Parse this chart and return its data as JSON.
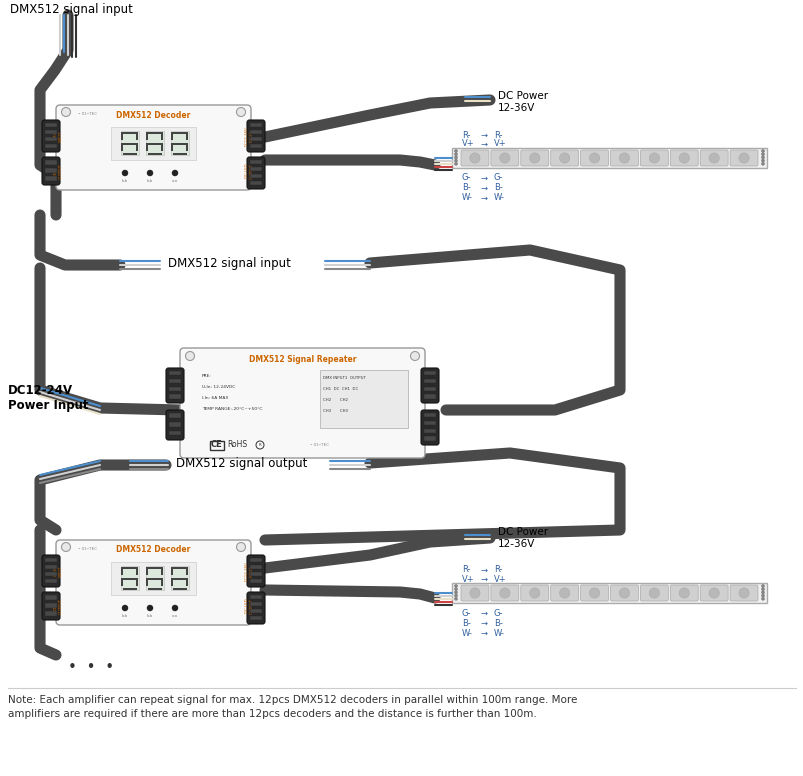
{
  "bg_color": "#ffffff",
  "dark_gray": "#4a4a4a",
  "blue_wire": "#4d8fcc",
  "white_wire": "#d0d0d0",
  "cream_wire": "#e8e0c8",
  "black_wire": "#333333",
  "connector_dark": "#2a2a2a",
  "connector_screw": "#505050",
  "box_fill": "#f8f8f8",
  "box_edge": "#999999",
  "led_fill": "#f0f0f0",
  "led_cell": "#c8c8c8",
  "orange_label": "#cc6600",
  "blue_label": "#3060a0",
  "note_text": "Note: Each amplifier can repeat signal for max. 12pcs DMX512 decoders in parallel within 100m range. More\namplifiers are required if there are more than 12pcs decoders and the distance is further than 100m.",
  "decoder_label": "DMX512 Decoder",
  "repeater_label": "DMX512 Signal Repeater",
  "signal_input1": "DMX512 signal input",
  "signal_input2": "DMX512 signal input",
  "signal_output": "DMX512 signal output",
  "dc_power": "DC Power\n12-36V",
  "dc_power_rep": "DC12-24V\nPower Input",
  "wire_cable": "#4a4a4a"
}
